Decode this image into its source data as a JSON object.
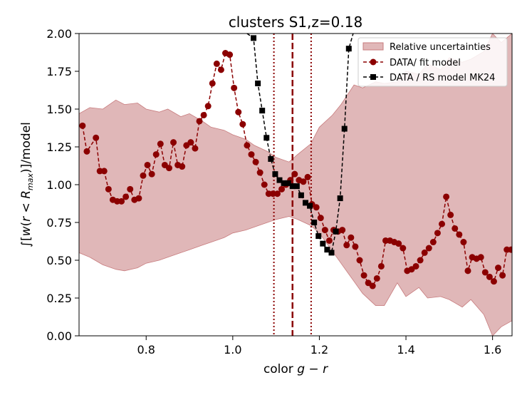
{
  "chart_data": {
    "type": "line",
    "title": "clusters S1,z=0.18",
    "xlabel": "color g − r",
    "ylabel": "∫[w(r < R_max)]/model",
    "xlim": [
      0.645,
      1.645
    ],
    "ylim": [
      0.0,
      2.0
    ],
    "xticks": [
      0.8,
      1.0,
      1.2,
      1.4,
      1.6
    ],
    "yticks": [
      0.0,
      0.25,
      0.5,
      0.75,
      1.0,
      1.25,
      1.5,
      1.75,
      2.0
    ],
    "xtick_labels": [
      "0.8",
      "1.0",
      "1.2",
      "1.4",
      "1.6"
    ],
    "ytick_labels": [
      "0.00",
      "0.25",
      "0.50",
      "0.75",
      "1.00",
      "1.25",
      "1.50",
      "1.75",
      "2.00"
    ],
    "legend_position": "top-right",
    "vlines": [
      {
        "x": 1.138,
        "style": "dashed",
        "color": "#8b0000"
      },
      {
        "x": 1.095,
        "style": "dotted",
        "color": "#8b0000"
      },
      {
        "x": 1.181,
        "style": "dotted",
        "color": "#8b0000"
      }
    ],
    "band": {
      "name": "Relative uncertainties",
      "color": "#c77b7d",
      "x": [
        0.645,
        0.67,
        0.7,
        0.73,
        0.75,
        0.78,
        0.8,
        0.83,
        0.85,
        0.88,
        0.9,
        0.93,
        0.95,
        0.98,
        1.0,
        1.03,
        1.05,
        1.08,
        1.1,
        1.13,
        1.15,
        1.18,
        1.2,
        1.23,
        1.25,
        1.28,
        1.3,
        1.33,
        1.35,
        1.38,
        1.4,
        1.43,
        1.45,
        1.48,
        1.5,
        1.53,
        1.55,
        1.58,
        1.6,
        1.62,
        1.645
      ],
      "upper": [
        1.47,
        1.51,
        1.5,
        1.56,
        1.53,
        1.54,
        1.5,
        1.48,
        1.5,
        1.45,
        1.47,
        1.42,
        1.38,
        1.36,
        1.33,
        1.3,
        1.26,
        1.22,
        1.18,
        1.15,
        1.2,
        1.27,
        1.38,
        1.46,
        1.53,
        1.66,
        1.64,
        1.68,
        1.67,
        1.68,
        1.75,
        1.73,
        1.8,
        1.76,
        1.84,
        1.81,
        1.83,
        1.88,
        2.0,
        1.94,
        2.0
      ],
      "lower": [
        0.55,
        0.52,
        0.47,
        0.44,
        0.43,
        0.45,
        0.48,
        0.5,
        0.52,
        0.55,
        0.57,
        0.6,
        0.62,
        0.65,
        0.68,
        0.7,
        0.72,
        0.75,
        0.77,
        0.79,
        0.77,
        0.73,
        0.68,
        0.56,
        0.48,
        0.36,
        0.28,
        0.2,
        0.2,
        0.35,
        0.26,
        0.32,
        0.25,
        0.26,
        0.24,
        0.19,
        0.24,
        0.14,
        0.0,
        0.06,
        0.1
      ]
    },
    "series": [
      {
        "name": "DATA/ fit model",
        "color": "#8b0000",
        "marker": "circle",
        "style": "dashed",
        "x": [
          0.653,
          0.663,
          0.684,
          0.693,
          0.703,
          0.713,
          0.723,
          0.733,
          0.743,
          0.753,
          0.763,
          0.773,
          0.783,
          0.793,
          0.803,
          0.813,
          0.823,
          0.833,
          0.843,
          0.853,
          0.863,
          0.873,
          0.883,
          0.893,
          0.903,
          0.913,
          0.923,
          0.933,
          0.943,
          0.953,
          0.963,
          0.973,
          0.983,
          0.993,
          1.003,
          1.013,
          1.023,
          1.033,
          1.043,
          1.053,
          1.063,
          1.073,
          1.083,
          1.093,
          1.103,
          1.113,
          1.123,
          1.133,
          1.143,
          1.153,
          1.163,
          1.173,
          1.183,
          1.193,
          1.203,
          1.213,
          1.223,
          1.233,
          1.243,
          1.253,
          1.263,
          1.273,
          1.283,
          1.293,
          1.303,
          1.313,
          1.323,
          1.333,
          1.343,
          1.353,
          1.363,
          1.373,
          1.383,
          1.393,
          1.403,
          1.413,
          1.423,
          1.433,
          1.443,
          1.453,
          1.463,
          1.473,
          1.483,
          1.493,
          1.503,
          1.513,
          1.523,
          1.533,
          1.543,
          1.553,
          1.563,
          1.573,
          1.583,
          1.593,
          1.603,
          1.613,
          1.623,
          1.633,
          1.643
        ],
        "y": [
          1.39,
          1.22,
          1.31,
          1.09,
          1.09,
          0.97,
          0.9,
          0.89,
          0.89,
          0.92,
          0.97,
          0.9,
          0.91,
          1.06,
          1.13,
          1.07,
          1.2,
          1.27,
          1.13,
          1.11,
          1.28,
          1.13,
          1.12,
          1.26,
          1.28,
          1.24,
          1.42,
          1.46,
          1.52,
          1.67,
          1.8,
          1.76,
          1.87,
          1.86,
          1.64,
          1.48,
          1.4,
          1.26,
          1.2,
          1.15,
          1.08,
          1.0,
          0.94,
          0.94,
          0.94,
          0.97,
          1.0,
          1.03,
          1.07,
          1.03,
          1.02,
          1.05,
          0.87,
          0.85,
          0.78,
          0.7,
          0.63,
          0.7,
          0.69,
          0.7,
          0.6,
          0.65,
          0.59,
          0.5,
          0.4,
          0.35,
          0.33,
          0.38,
          0.46,
          0.63,
          0.63,
          0.62,
          0.61,
          0.58,
          0.43,
          0.44,
          0.46,
          0.5,
          0.55,
          0.58,
          0.62,
          0.68,
          0.74,
          0.92,
          0.8,
          0.71,
          0.67,
          0.62,
          0.43,
          0.52,
          0.51,
          0.52,
          0.42,
          0.39,
          0.36,
          0.45,
          0.4,
          0.57,
          0.57
        ]
      },
      {
        "name": "DATA / RS model MK24",
        "color": "#000000",
        "marker": "square",
        "style": "dashed",
        "x": [
          1.033,
          1.048,
          1.058,
          1.068,
          1.078,
          1.088,
          1.098,
          1.108,
          1.118,
          1.128,
          1.138,
          1.148,
          1.158,
          1.168,
          1.178,
          1.188,
          1.198,
          1.208,
          1.218,
          1.228,
          1.238,
          1.248,
          1.258,
          1.268,
          1.278
        ],
        "y": [
          2.0,
          1.97,
          1.67,
          1.49,
          1.31,
          1.17,
          1.07,
          1.03,
          1.01,
          1.01,
          0.99,
          0.99,
          0.93,
          0.88,
          0.86,
          0.75,
          0.66,
          0.61,
          0.57,
          0.55,
          0.69,
          0.91,
          1.37,
          1.9,
          2.0
        ],
        "marker_start_index": 1,
        "marker_end_index": 23
      }
    ]
  }
}
